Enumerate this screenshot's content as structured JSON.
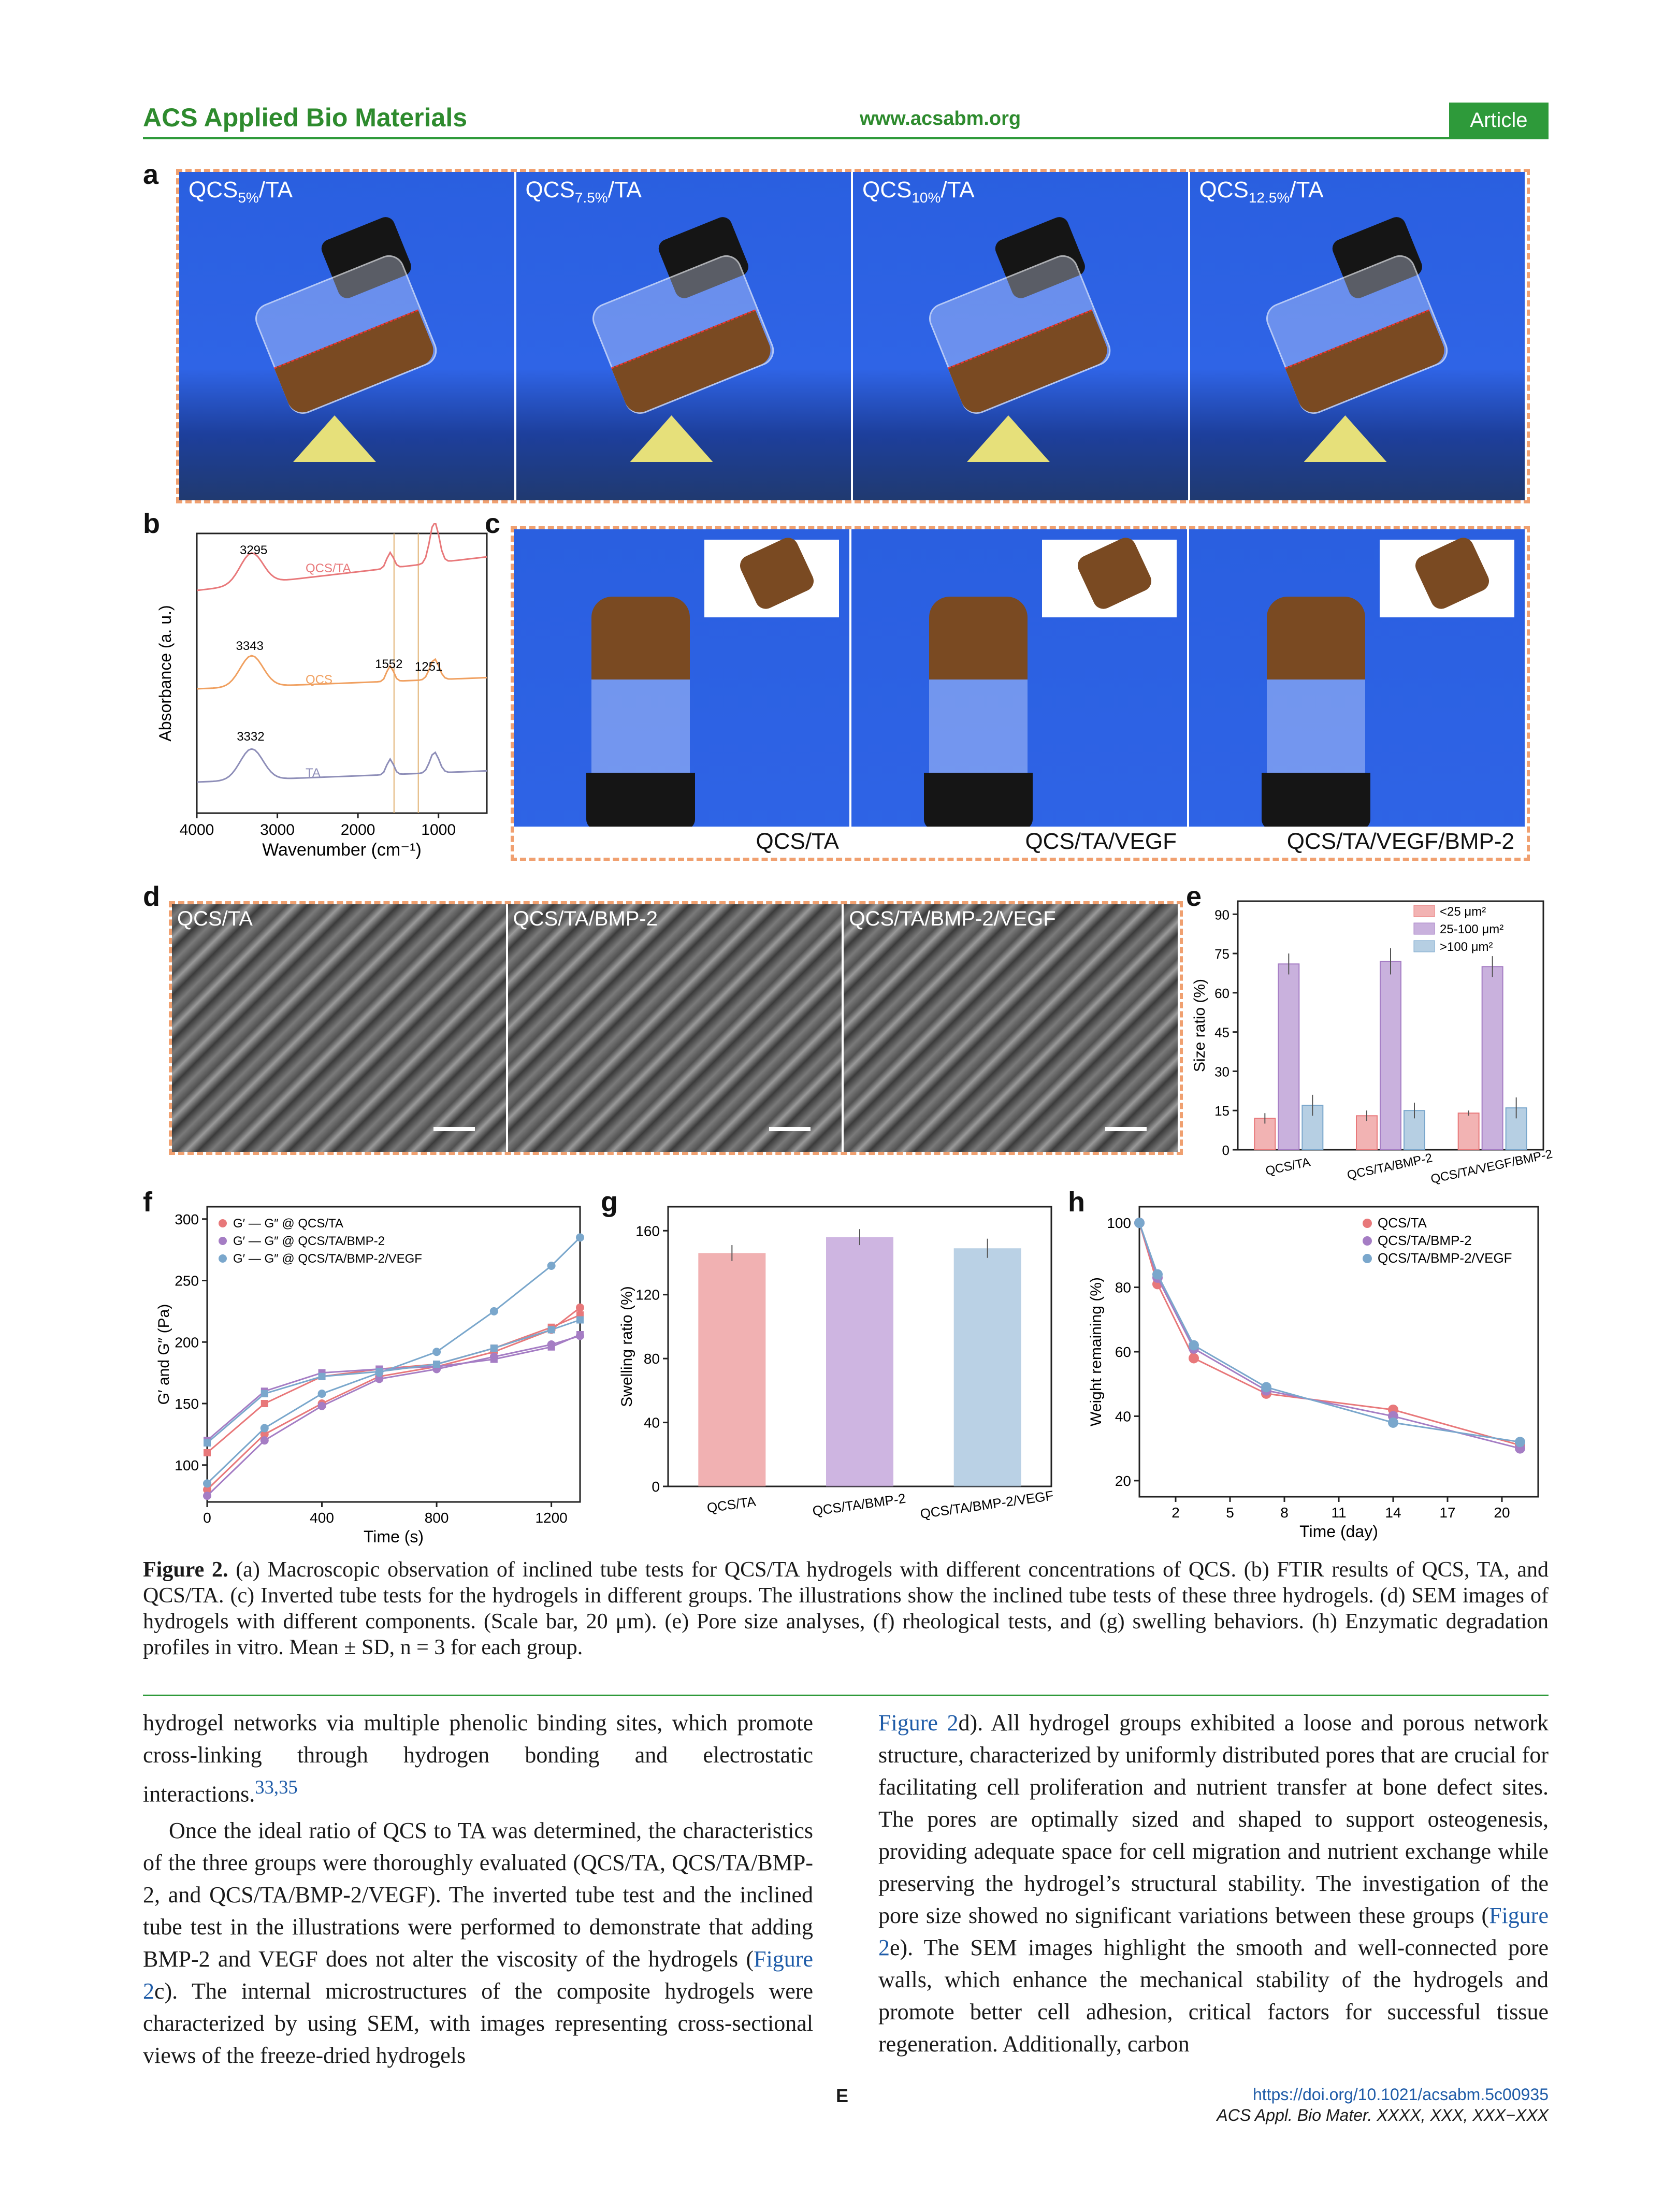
{
  "header": {
    "journal": "ACS Applied Bio Materials",
    "url": "www.acsabm.org",
    "badge": "Article"
  },
  "panel_labels": {
    "a": "a",
    "b": "b",
    "c": "c",
    "d": "d",
    "e": "e",
    "f": "f",
    "g": "g",
    "h": "h"
  },
  "panel_a": {
    "photos": [
      {
        "base": "QCS",
        "sub": "5%",
        "suffix": "/TA"
      },
      {
        "base": "QCS",
        "sub": "7.5%",
        "suffix": "/TA"
      },
      {
        "base": "QCS",
        "sub": "10%",
        "suffix": "/TA"
      },
      {
        "base": "QCS",
        "sub": "12.5%",
        "suffix": "/TA"
      }
    ]
  },
  "panel_c": {
    "photos": [
      "QCS/TA",
      "QCS/TA/VEGF",
      "QCS/TA/VEGF/BMP-2"
    ]
  },
  "panel_d": {
    "photos": [
      "QCS/TA",
      "QCS/TA/BMP-2",
      "QCS/TA/BMP-2/VEGF"
    ]
  },
  "colors": {
    "red": "#e8787a",
    "purple": "#a57dc4",
    "blue": "#7aa7cc",
    "orange": "#f0a060",
    "accent": "#2e9a3a"
  },
  "chart_data": [
    {
      "panel": "b",
      "type": "line",
      "xlabel": "Wavenumber (cm⁻¹)",
      "ylabel": "Absorbance (a. u.)",
      "xlim": [
        4000,
        400
      ],
      "xticks": [
        4000,
        3000,
        2000,
        1000
      ],
      "series": [
        {
          "name": "QCS/TA",
          "color": "#e8787a"
        },
        {
          "name": "QCS",
          "color": "#f0a060"
        },
        {
          "name": "TA",
          "color": "#8e8eb8"
        }
      ],
      "annotations": [
        "3295",
        "3343",
        "3332",
        "1552",
        "1251"
      ]
    },
    {
      "panel": "e",
      "type": "bar",
      "ylabel": "Size ratio (%)",
      "ylim": [
        0,
        95
      ],
      "yticks": [
        0,
        15,
        30,
        45,
        60,
        75,
        90
      ],
      "categories": [
        "QCS/TA",
        "QCS/TA/BMP-2",
        "QCS/TA/VEGF/BMP-2"
      ],
      "series": [
        {
          "name": "<25 μm²",
          "values": [
            12,
            13,
            14
          ],
          "errors": [
            2,
            2,
            1
          ]
        },
        {
          "name": "25-100 μm²",
          "values": [
            71,
            72,
            70
          ],
          "errors": [
            4,
            5,
            4
          ]
        },
        {
          "name": ">100 μm²",
          "values": [
            17,
            15,
            16
          ],
          "errors": [
            4,
            3,
            4
          ]
        }
      ]
    },
    {
      "panel": "f",
      "type": "line",
      "xlabel": "Time (s)",
      "ylabel": "G′ and G″ (Pa)",
      "xlim": [
        0,
        1300
      ],
      "ylim": [
        70,
        310
      ],
      "xticks": [
        0,
        400,
        800,
        1200
      ],
      "yticks": [
        100,
        150,
        200,
        250,
        300
      ],
      "legend": [
        "G′ — G″ @ QCS/TA",
        "G′ — G″ @ QCS/TA/BMP-2",
        "G′ — G″ @ QCS/TA/BMP-2/VEGF"
      ],
      "series": [
        {
          "name": "G′ QCS/TA",
          "x": [
            0,
            200,
            400,
            600,
            800,
            1000,
            1200,
            1300
          ],
          "y": [
            80,
            125,
            150,
            172,
            180,
            192,
            210,
            228
          ]
        },
        {
          "name": "G″ QCS/TA",
          "x": [
            0,
            200,
            400,
            600,
            800,
            1000,
            1200,
            1300
          ],
          "y": [
            110,
            150,
            172,
            178,
            182,
            195,
            212,
            222
          ]
        },
        {
          "name": "G′ QCS/TA/BMP-2",
          "x": [
            0,
            200,
            400,
            600,
            800,
            1000,
            1200,
            1300
          ],
          "y": [
            75,
            120,
            148,
            170,
            178,
            188,
            198,
            205
          ]
        },
        {
          "name": "G″ QCS/TA/BMP-2",
          "x": [
            0,
            200,
            400,
            600,
            800,
            1000,
            1200,
            1300
          ],
          "y": [
            120,
            160,
            175,
            178,
            180,
            186,
            196,
            206
          ]
        },
        {
          "name": "G′ QCS/TA/BMP-2/VEGF",
          "x": [
            0,
            200,
            400,
            600,
            800,
            1000,
            1200,
            1300
          ],
          "y": [
            85,
            130,
            158,
            175,
            192,
            225,
            262,
            285
          ]
        },
        {
          "name": "G″ QCS/TA/BMP-2/VEGF",
          "x": [
            0,
            200,
            400,
            600,
            800,
            1000,
            1200,
            1300
          ],
          "y": [
            118,
            158,
            172,
            176,
            182,
            195,
            210,
            218
          ]
        }
      ]
    },
    {
      "panel": "g",
      "type": "bar",
      "ylabel": "Swelling ratio (%)",
      "ylim": [
        0,
        175
      ],
      "yticks": [
        0,
        40,
        80,
        120,
        160
      ],
      "categories": [
        "QCS/TA",
        "QCS/TA/BMP-2",
        "QCS/TA/BMP-2/VEGF"
      ],
      "values": [
        146,
        156,
        149
      ],
      "errors": [
        5,
        5,
        6
      ]
    },
    {
      "panel": "h",
      "type": "line",
      "xlabel": "Time (day)",
      "ylabel": "Weight remaining (%)",
      "xlim": [
        0,
        22
      ],
      "ylim": [
        15,
        105
      ],
      "xticks": [
        2,
        5,
        8,
        11,
        14,
        17,
        20
      ],
      "yticks": [
        20,
        40,
        60,
        80,
        100
      ],
      "series": [
        {
          "name": "QCS/TA",
          "x": [
            0,
            1,
            3,
            7,
            14,
            21
          ],
          "y": [
            100,
            81,
            58,
            47,
            42,
            31
          ]
        },
        {
          "name": "QCS/TA/BMP-2",
          "x": [
            0,
            1,
            3,
            7,
            14,
            21
          ],
          "y": [
            100,
            83,
            61,
            48,
            40,
            30
          ]
        },
        {
          "name": "QCS/TA/BMP-2/VEGF",
          "x": [
            0,
            1,
            3,
            7,
            14,
            21
          ],
          "y": [
            100,
            84,
            62,
            49,
            38,
            32
          ]
        }
      ]
    }
  ],
  "caption": {
    "label": "Figure 2.",
    "text": "(a) Macroscopic observation of inclined tube tests for QCS/TA hydrogels with different concentrations of QCS. (b) FTIR results of QCS, TA, and QCS/TA. (c) Inverted tube tests for the hydrogels in different groups. The illustrations show the inclined tube tests of these three hydrogels. (d) SEM images of hydrogels with different components. (Scale bar, 20 μm). (e) Pore size analyses, (f) rheological tests, and (g) swelling behaviors. (h) Enzymatic degradation profiles in vitro. Mean ± SD, n = 3 for each group."
  },
  "body": {
    "left_p1": "hydrogel networks via multiple phenolic binding sites, which promote cross-linking through hydrogen bonding and electrostatic interactions.",
    "left_p1_cite": "33,35",
    "left_p2a": "Once the ideal ratio of QCS to TA was determined, the characteristics of the three groups were thoroughly evaluated (QCS/TA, QCS/TA/BMP-2, and QCS/TA/BMP-2/VEGF). The inverted tube test and the inclined tube test in the illustrations were performed to demonstrate that adding BMP-2 and VEGF does not alter the viscosity of the hydrogels (",
    "left_p2_link": "Figure 2",
    "left_p2b": "c). The internal microstructures of the composite hydrogels were characterized by using SEM, with images representing cross-sectional views of the freeze-dried hydrogels",
    "right_link1": "Figure 2",
    "right_a": "d). All hydrogel groups exhibited a loose and porous network structure, characterized by uniformly distributed pores that are crucial for facilitating cell proliferation and nutrient transfer at bone defect sites. The pores are optimally sized and shaped to support osteogenesis, providing adequate space for cell migration and nutrient exchange while preserving the hydrogel’s structural stability. The investigation of the pore size showed no significant variations between these groups (",
    "right_link2": "Figure 2",
    "right_b": "e). The SEM images highlight the smooth and well-connected pore walls, which enhance the mechanical stability of the hydrogels and promote better cell adhesion, critical factors for successful tissue regeneration. Additionally, carbon"
  },
  "footer": {
    "page": "E",
    "doi": "https://doi.org/10.1021/acsabm.5c00935",
    "ref": "ACS Appl. Bio Mater. XXXX, XXX, XXX−XXX"
  }
}
